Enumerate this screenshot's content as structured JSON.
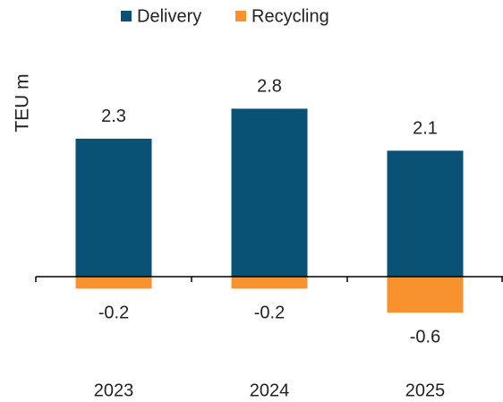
{
  "chart_data": {
    "type": "bar",
    "stacked": true,
    "axis_label": "TEU m",
    "categories": [
      "2023",
      "2024",
      "2025"
    ],
    "series": [
      {
        "name": "Delivery",
        "color": "#0a5275",
        "values": [
          2.3,
          2.8,
          2.1
        ]
      },
      {
        "name": "Recycling",
        "color": "#f7922f",
        "values": [
          -0.2,
          -0.2,
          -0.6
        ]
      }
    ]
  }
}
